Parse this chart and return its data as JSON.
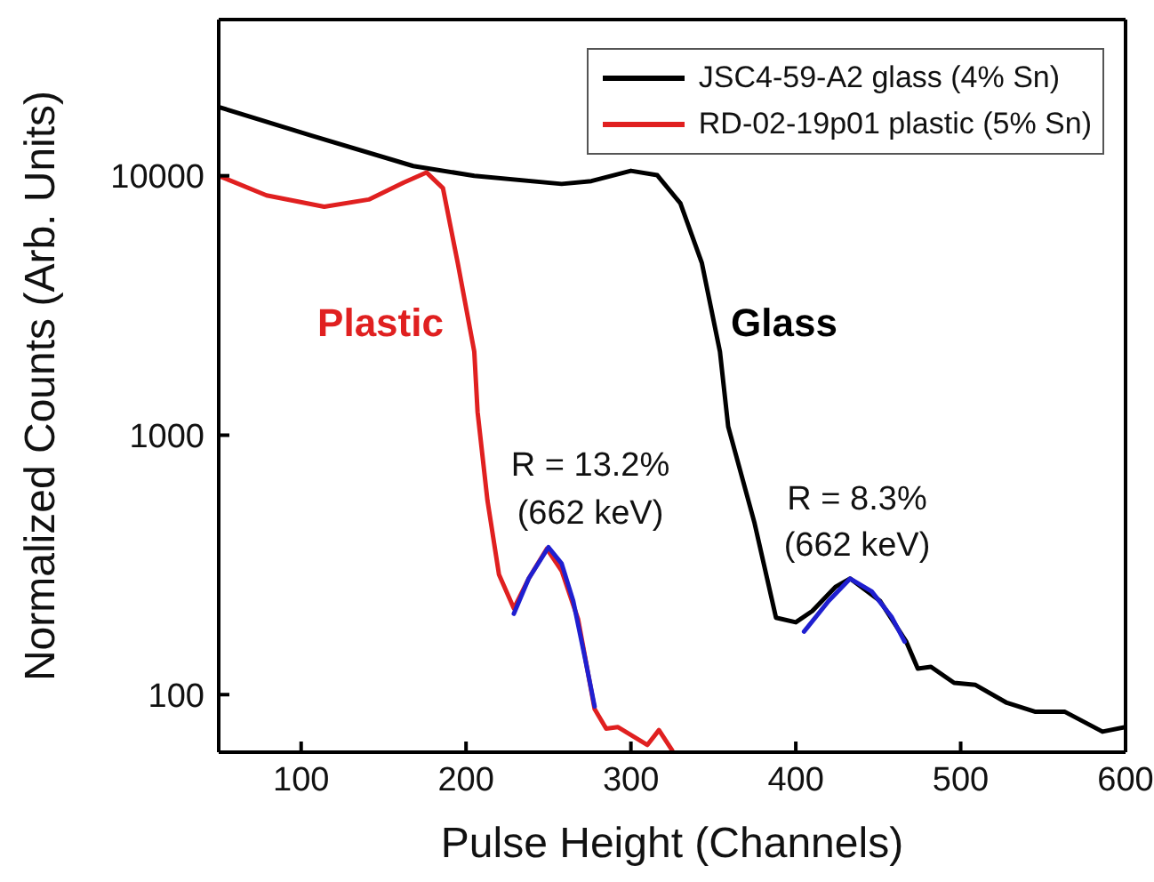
{
  "chart_data": {
    "type": "line",
    "xlabel": "Pulse Height (Channels)",
    "ylabel": "Normalized Counts (Arb. Units)",
    "log": "y",
    "xlim": [
      50,
      600
    ],
    "xticks": [
      100,
      200,
      300,
      400,
      500,
      600
    ],
    "ylim": [
      60,
      40000
    ],
    "yticks": [
      100,
      1000,
      10000
    ],
    "legend": "top right",
    "marker": "none",
    "line_style": "solid",
    "series": [
      {
        "name": "JSC4-59-A2 glass (4% Sn)",
        "color": "#000000",
        "x": [
          50,
          106,
          168,
          205,
          258,
          276,
          300,
          316,
          330,
          343,
          354,
          359,
          375,
          388,
          400,
          410,
          424,
          433,
          451,
          467,
          474,
          482,
          496,
          509,
          528,
          545,
          563,
          586,
          600
        ],
        "values": [
          18400,
          14300,
          10900,
          10000,
          9300,
          9540,
          10450,
          10050,
          7830,
          4620,
          2100,
          1080,
          458,
          198,
          190,
          210,
          260,
          280,
          230,
          160,
          126,
          128,
          111,
          109,
          93,
          86,
          86,
          72,
          75
        ]
      },
      {
        "name": "RD-02-19p01 plastic (5% Sn)",
        "color": "#e02020",
        "x": [
          50,
          79,
          114,
          141,
          162,
          176,
          186,
          195,
          205,
          207,
          213,
          220,
          229,
          238,
          249,
          258,
          268,
          278,
          285,
          292,
          310,
          317,
          325
        ],
        "values": [
          10000,
          8400,
          7600,
          8100,
          9400,
          10300,
          8960,
          4600,
          2100,
          1230,
          560,
          290,
          215,
          280,
          365,
          300,
          195,
          88,
          74,
          75,
          64,
          73,
          61
        ]
      },
      {
        "color": "#1f1fd0",
        "x": [
          229,
          238,
          250,
          258,
          265,
          272,
          278
        ],
        "values": [
          205,
          280,
          370,
          320,
          230,
          140,
          90
        ]
      },
      {
        "color": "#1f1fd0",
        "x": [
          405,
          420,
          433,
          446,
          458,
          466
        ],
        "values": [
          175,
          230,
          280,
          250,
          200,
          160
        ]
      }
    ],
    "annotations": [
      "Glass",
      "Plastic",
      "R = 13.2%",
      "(662 keV)",
      "R = 8.3%",
      "(662 keV)"
    ]
  }
}
